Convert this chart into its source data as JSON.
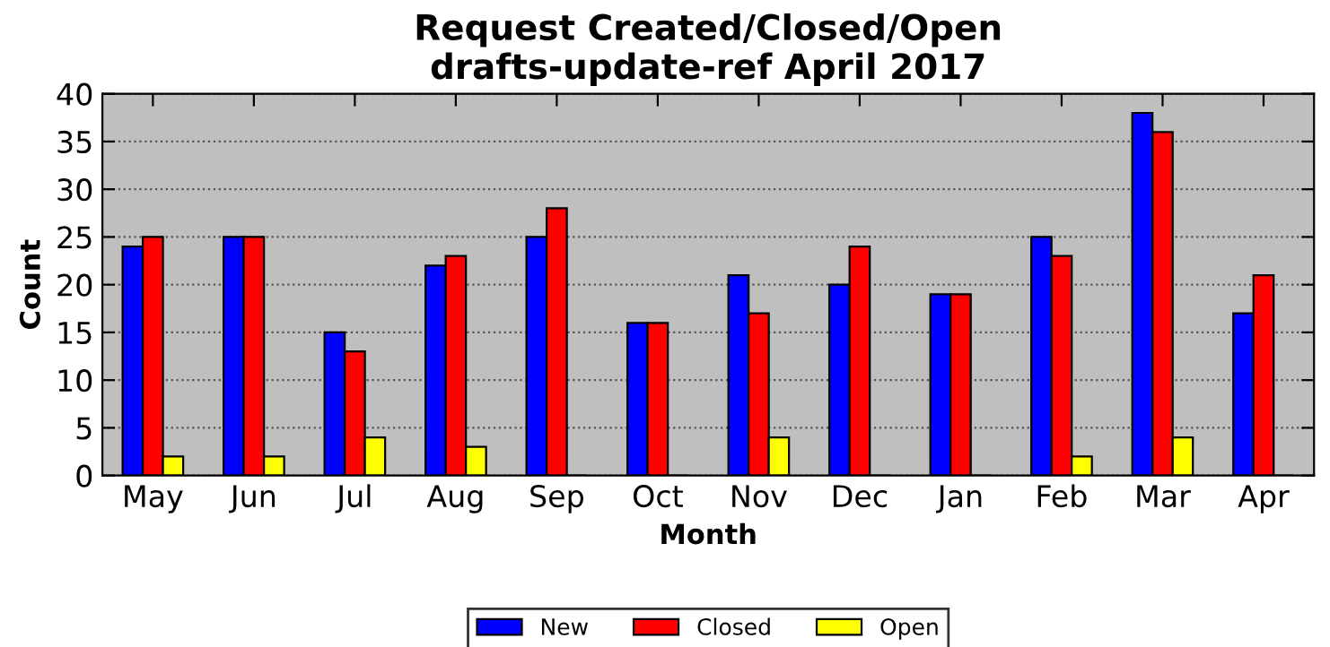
{
  "chart_data": {
    "type": "bar",
    "title": "Request Created/Closed/Open\ndrafts-update-ref April 2017",
    "xlabel": "Month",
    "ylabel": "Count",
    "categories": [
      "May",
      "Jun",
      "Jul",
      "Aug",
      "Sep",
      "Oct",
      "Nov",
      "Dec",
      "Jan",
      "Feb",
      "Mar",
      "Apr"
    ],
    "series": [
      {
        "name": "New",
        "color": "#0000ff",
        "values": [
          24,
          25,
          15,
          22,
          25,
          16,
          21,
          20,
          19,
          25,
          38,
          17
        ]
      },
      {
        "name": "Closed",
        "color": "#ff0000",
        "values": [
          25,
          25,
          13,
          23,
          28,
          16,
          17,
          24,
          19,
          23,
          36,
          21
        ]
      },
      {
        "name": "Open",
        "color": "#ffff00",
        "values": [
          2,
          2,
          4,
          3,
          0,
          0,
          4,
          0,
          0,
          2,
          4,
          0
        ]
      }
    ],
    "ylim": [
      0,
      40
    ],
    "yticks": [
      0,
      5,
      10,
      15,
      20,
      25,
      30,
      35,
      40
    ],
    "grid": "y",
    "legend": "bottom"
  }
}
